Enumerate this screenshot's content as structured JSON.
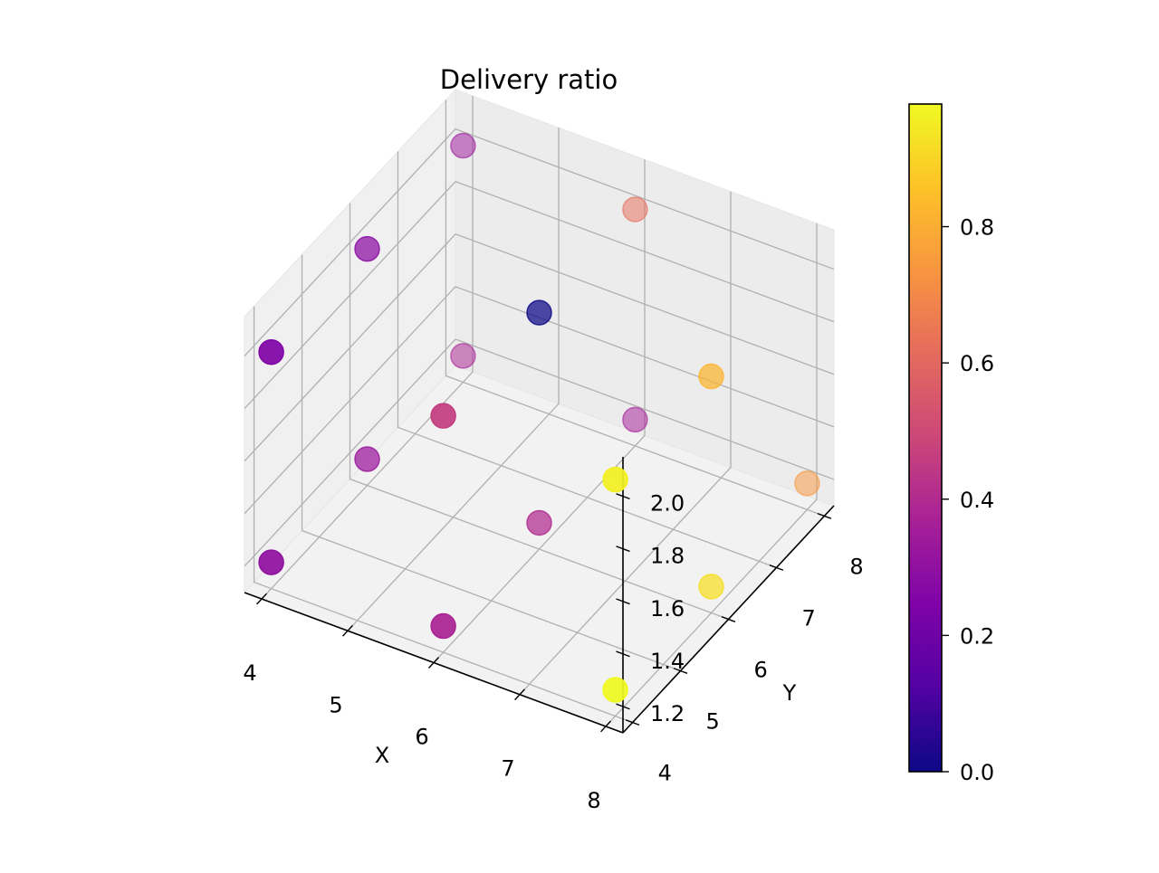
{
  "chart_data": {
    "type": "scatter",
    "projection": "3d",
    "title": "Delivery ratio",
    "xlabel": "X",
    "ylabel": "Y",
    "zlabel": "",
    "xlim": [
      3.8,
      8.2
    ],
    "ylim": [
      3.8,
      8.2
    ],
    "zlim": [
      1.1,
      2.15
    ],
    "x_ticks": [
      4,
      5,
      6,
      7,
      8
    ],
    "y_ticks": [
      4,
      5,
      6,
      7,
      8
    ],
    "z_ticks": [
      "1.2",
      "1.4",
      "1.6",
      "1.8",
      "2.0"
    ],
    "grid": true,
    "colormap": "plasma",
    "colorbar": {
      "min": 0.0,
      "max": 0.98,
      "ticks": [
        "0.0",
        "0.2",
        "0.4",
        "0.6",
        "0.8"
      ]
    },
    "colors": {
      "low": "#0d0887",
      "mid": "#cc4778",
      "high": "#f0f921"
    },
    "points": [
      {
        "x": 4,
        "y": 4,
        "z": 1.2,
        "c": 0.3
      },
      {
        "x": 6,
        "y": 4,
        "z": 1.2,
        "c": 0.38
      },
      {
        "x": 8,
        "y": 4,
        "z": 1.2,
        "c": 0.98
      },
      {
        "x": 4,
        "y": 6,
        "z": 1.2,
        "c": 0.33
      },
      {
        "x": 6,
        "y": 6,
        "z": 1.2,
        "c": 0.4
      },
      {
        "x": 8,
        "y": 6,
        "z": 1.2,
        "c": 0.92
      },
      {
        "x": 4,
        "y": 8,
        "z": 1.2,
        "c": 0.38
      },
      {
        "x": 6,
        "y": 8,
        "z": 1.2,
        "c": 0.36
      },
      {
        "x": 8,
        "y": 8,
        "z": 1.2,
        "c": 0.74
      },
      {
        "x": 4,
        "y": 4,
        "z": 2.0,
        "c": 0.25
      },
      {
        "x": 6,
        "y": 4,
        "z": 2.0,
        "c": 0.46
      },
      {
        "x": 8,
        "y": 4,
        "z": 2.0,
        "c": 0.96
      },
      {
        "x": 4,
        "y": 6,
        "z": 2.0,
        "c": 0.28
      },
      {
        "x": 6,
        "y": 6,
        "z": 2.0,
        "c": 0.0
      },
      {
        "x": 8,
        "y": 6,
        "z": 2.0,
        "c": 0.82
      },
      {
        "x": 4,
        "y": 8,
        "z": 2.0,
        "c": 0.34
      },
      {
        "x": 6,
        "y": 8,
        "z": 2.0,
        "c": 0.62
      }
    ]
  }
}
